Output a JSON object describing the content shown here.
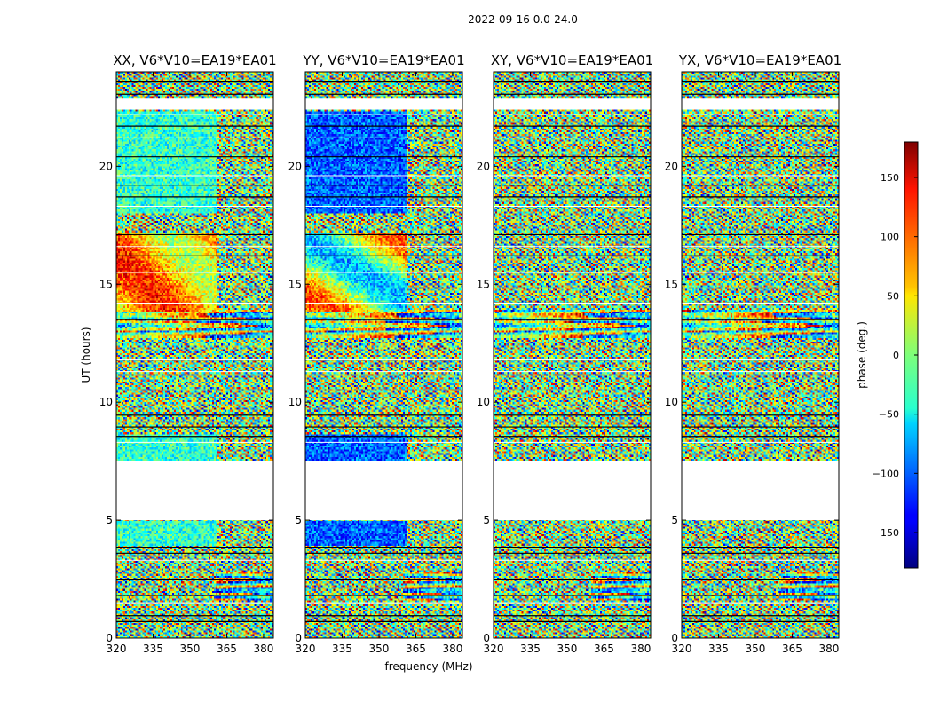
{
  "chart_data": {
    "type": "heatmap",
    "suptitle": "2022-09-16 0.0-24.0",
    "xlabel": "frequency (MHz)",
    "ylabel": "UT (hours)",
    "xlim": [
      320,
      384
    ],
    "ylim": [
      0,
      24
    ],
    "xticks": [
      320,
      335,
      350,
      365,
      380
    ],
    "yticks": [
      0,
      5,
      10,
      15,
      20
    ],
    "panels": [
      {
        "title": "XX, V6*V10=EA19*EA01",
        "pol": "XX"
      },
      {
        "title": "YY, V6*V10=EA19*EA01",
        "pol": "YY"
      },
      {
        "title": "XY, V6*V10=EA19*EA01",
        "pol": "XY"
      },
      {
        "title": "YX, V6*V10=EA19*EA01",
        "pol": "YX"
      }
    ],
    "colorbar": {
      "label": "phase (deg.)",
      "range": [
        -180,
        180
      ],
      "ticks": [
        150,
        100,
        50,
        0,
        -50,
        -100,
        -150
      ],
      "colormap": "jet"
    },
    "data_gaps_ut_hours": [
      [
        5.0,
        7.5
      ],
      [
        22.4,
        22.9
      ]
    ],
    "flagged_lines_ut_hours": [
      0.7,
      0.95,
      1.8,
      2.5,
      3.6,
      3.85,
      8.55,
      8.95,
      9.45,
      13.5,
      16.2,
      17.1,
      18.7,
      19.2,
      20.4,
      21.7,
      23.05,
      23.6
    ],
    "texture_notes": "Phase varies rapidly with time and frequency; XX/YY show smoother regions below ~361 MHz between 14-17 UT and 18-22 UT"
  }
}
